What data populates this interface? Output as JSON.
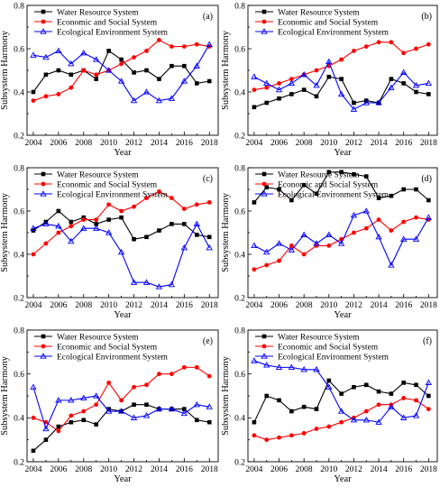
{
  "chart_data": [
    {
      "panel": "(a)",
      "type": "line",
      "xlabel": "Year",
      "ylabel": "Subsystem Harmony",
      "xlim": [
        2003.5,
        2018.7
      ],
      "ylim": [
        0.2,
        0.8
      ],
      "xticks": [
        2004,
        2006,
        2008,
        2010,
        2012,
        2014,
        2016,
        2018
      ],
      "yticks": [
        0.2,
        0.4,
        0.6,
        0.8
      ],
      "x": [
        2004,
        2005,
        2006,
        2007,
        2008,
        2009,
        2010,
        2011,
        2012,
        2013,
        2014,
        2015,
        2016,
        2017,
        2018
      ],
      "series": [
        {
          "name": "Water Resource System",
          "color": "#000000",
          "marker": "square",
          "values": [
            0.4,
            0.48,
            0.5,
            0.48,
            0.5,
            0.46,
            0.59,
            0.55,
            0.49,
            0.5,
            0.46,
            0.52,
            0.52,
            0.44,
            0.45
          ]
        },
        {
          "name": "Economic and Social System",
          "color": "#ff0000",
          "marker": "circle",
          "values": [
            0.36,
            0.38,
            0.39,
            0.42,
            0.5,
            0.48,
            0.5,
            0.53,
            0.56,
            0.59,
            0.64,
            0.61,
            0.61,
            0.62,
            0.61
          ]
        },
        {
          "name": "Ecological Environment System",
          "color": "#0000ff",
          "marker": "triangle",
          "values": [
            0.57,
            0.56,
            0.59,
            0.53,
            0.58,
            0.55,
            0.5,
            0.45,
            0.36,
            0.4,
            0.36,
            0.37,
            0.45,
            0.52,
            0.62
          ]
        }
      ]
    },
    {
      "panel": "(b)",
      "type": "line",
      "xlabel": "Year",
      "ylabel": "Subsystem Harmony",
      "xlim": [
        2003.5,
        2018.7
      ],
      "ylim": [
        0.2,
        0.8
      ],
      "xticks": [
        2004,
        2006,
        2008,
        2010,
        2012,
        2014,
        2016,
        2018
      ],
      "yticks": [
        0.2,
        0.4,
        0.6,
        0.8
      ],
      "x": [
        2004,
        2005,
        2006,
        2007,
        2008,
        2009,
        2010,
        2011,
        2012,
        2013,
        2014,
        2015,
        2016,
        2017,
        2018
      ],
      "series": [
        {
          "name": "Water Resource System",
          "color": "#000000",
          "marker": "square",
          "values": [
            0.33,
            0.35,
            0.37,
            0.39,
            0.41,
            0.38,
            0.47,
            0.46,
            0.35,
            0.36,
            0.35,
            0.46,
            0.44,
            0.4,
            0.39
          ]
        },
        {
          "name": "Economic and Social System",
          "color": "#ff0000",
          "marker": "circle",
          "values": [
            0.41,
            0.42,
            0.44,
            0.46,
            0.48,
            0.5,
            0.52,
            0.55,
            0.59,
            0.61,
            0.63,
            0.63,
            0.58,
            0.6,
            0.62
          ]
        },
        {
          "name": "Ecological Environment System",
          "color": "#0000ff",
          "marker": "triangle",
          "values": [
            0.47,
            0.44,
            0.41,
            0.44,
            0.48,
            0.43,
            0.54,
            0.39,
            0.32,
            0.35,
            0.35,
            0.42,
            0.49,
            0.43,
            0.44
          ]
        }
      ]
    },
    {
      "panel": "(c)",
      "type": "line",
      "xlabel": "Year",
      "ylabel": "Subsystem Harmony",
      "xlim": [
        2003.5,
        2018.7
      ],
      "ylim": [
        0.2,
        0.8
      ],
      "xticks": [
        2004,
        2006,
        2008,
        2010,
        2012,
        2014,
        2016,
        2018
      ],
      "yticks": [
        0.2,
        0.4,
        0.6,
        0.8
      ],
      "x": [
        2004,
        2005,
        2006,
        2007,
        2008,
        2009,
        2010,
        2011,
        2012,
        2013,
        2014,
        2015,
        2016,
        2017,
        2018
      ],
      "series": [
        {
          "name": "Water Resource System",
          "color": "#000000",
          "marker": "square",
          "values": [
            0.51,
            0.55,
            0.6,
            0.55,
            0.57,
            0.54,
            0.56,
            0.57,
            0.47,
            0.48,
            0.51,
            0.54,
            0.54,
            0.49,
            0.48
          ]
        },
        {
          "name": "Economic and Social System",
          "color": "#ff0000",
          "marker": "circle",
          "values": [
            0.4,
            0.45,
            0.5,
            0.53,
            0.56,
            0.56,
            0.63,
            0.6,
            0.62,
            0.66,
            0.69,
            0.66,
            0.61,
            0.63,
            0.64
          ]
        },
        {
          "name": "Ecological Environment System",
          "color": "#0000ff",
          "marker": "triangle",
          "values": [
            0.52,
            0.54,
            0.53,
            0.46,
            0.52,
            0.52,
            0.5,
            0.41,
            0.27,
            0.27,
            0.25,
            0.26,
            0.43,
            0.54,
            0.43
          ]
        }
      ]
    },
    {
      "panel": "(d)",
      "type": "line",
      "xlabel": "Year",
      "ylabel": "Subsystem Harmony",
      "xlim": [
        2003.5,
        2018.7
      ],
      "ylim": [
        0.2,
        0.8
      ],
      "xticks": [
        2004,
        2006,
        2008,
        2010,
        2012,
        2014,
        2016,
        2018
      ],
      "yticks": [
        0.2,
        0.4,
        0.6,
        0.8
      ],
      "x": [
        2004,
        2005,
        2006,
        2007,
        2008,
        2009,
        2010,
        2011,
        2012,
        2013,
        2014,
        2015,
        2016,
        2017,
        2018
      ],
      "series": [
        {
          "name": "Water Resource System",
          "color": "#000000",
          "marker": "square",
          "values": [
            0.64,
            0.71,
            0.7,
            0.65,
            0.72,
            0.68,
            0.78,
            0.78,
            0.77,
            0.76,
            0.66,
            0.67,
            0.7,
            0.7,
            0.65
          ]
        },
        {
          "name": "Economic and Social System",
          "color": "#ff0000",
          "marker": "circle",
          "values": [
            0.33,
            0.35,
            0.37,
            0.44,
            0.4,
            0.44,
            0.44,
            0.47,
            0.5,
            0.52,
            0.56,
            0.51,
            0.55,
            0.57,
            0.56
          ]
        },
        {
          "name": "Ecological Environment System",
          "color": "#0000ff",
          "marker": "triangle",
          "values": [
            0.44,
            0.41,
            0.45,
            0.42,
            0.49,
            0.45,
            0.49,
            0.45,
            0.58,
            0.6,
            0.48,
            0.35,
            0.47,
            0.47,
            0.57
          ]
        }
      ]
    },
    {
      "panel": "(e)",
      "type": "line",
      "xlabel": "Year",
      "ylabel": "Subsystem Harmony",
      "xlim": [
        2003.5,
        2018.7
      ],
      "ylim": [
        0.2,
        0.8
      ],
      "xticks": [
        2004,
        2006,
        2008,
        2010,
        2012,
        2014,
        2016,
        2018
      ],
      "yticks": [
        0.2,
        0.4,
        0.6,
        0.8
      ],
      "x": [
        2004,
        2005,
        2006,
        2007,
        2008,
        2009,
        2010,
        2011,
        2012,
        2013,
        2014,
        2015,
        2016,
        2017,
        2018
      ],
      "series": [
        {
          "name": "Water Resource System",
          "color": "#000000",
          "marker": "square",
          "values": [
            0.25,
            0.3,
            0.36,
            0.38,
            0.39,
            0.37,
            0.44,
            0.43,
            0.46,
            0.46,
            0.44,
            0.44,
            0.44,
            0.39,
            0.38
          ]
        },
        {
          "name": "Economic and Social System",
          "color": "#ff0000",
          "marker": "circle",
          "values": [
            0.4,
            0.38,
            0.34,
            0.41,
            0.43,
            0.46,
            0.56,
            0.48,
            0.54,
            0.55,
            0.6,
            0.6,
            0.63,
            0.63,
            0.59
          ]
        },
        {
          "name": "Ecological Environment System",
          "color": "#0000ff",
          "marker": "triangle",
          "values": [
            0.54,
            0.35,
            0.48,
            0.48,
            0.49,
            0.5,
            0.43,
            0.43,
            0.4,
            0.41,
            0.44,
            0.44,
            0.42,
            0.46,
            0.45
          ]
        }
      ]
    },
    {
      "panel": "(f)",
      "type": "line",
      "xlabel": "Year",
      "ylabel": "Subsystem Harmony",
      "xlim": [
        2003.5,
        2018.7
      ],
      "ylim": [
        0.2,
        0.8
      ],
      "xticks": [
        2004,
        2006,
        2008,
        2010,
        2012,
        2014,
        2016,
        2018
      ],
      "yticks": [
        0.2,
        0.4,
        0.6,
        0.8
      ],
      "x": [
        2004,
        2005,
        2006,
        2007,
        2008,
        2009,
        2010,
        2011,
        2012,
        2013,
        2014,
        2015,
        2016,
        2017,
        2018
      ],
      "series": [
        {
          "name": "Water Resource System",
          "color": "#000000",
          "marker": "square",
          "values": [
            0.38,
            0.5,
            0.48,
            0.43,
            0.45,
            0.44,
            0.57,
            0.51,
            0.54,
            0.55,
            0.52,
            0.51,
            0.56,
            0.55,
            0.5
          ]
        },
        {
          "name": "Economic and Social System",
          "color": "#ff0000",
          "marker": "circle",
          "values": [
            0.32,
            0.3,
            0.31,
            0.32,
            0.33,
            0.35,
            0.36,
            0.38,
            0.4,
            0.43,
            0.46,
            0.46,
            0.49,
            0.48,
            0.44
          ]
        },
        {
          "name": "Ecological Environment System",
          "color": "#0000ff",
          "marker": "triangle",
          "values": [
            0.66,
            0.64,
            0.63,
            0.63,
            0.62,
            0.62,
            0.54,
            0.43,
            0.39,
            0.39,
            0.38,
            0.45,
            0.4,
            0.41,
            0.56
          ]
        }
      ]
    }
  ]
}
